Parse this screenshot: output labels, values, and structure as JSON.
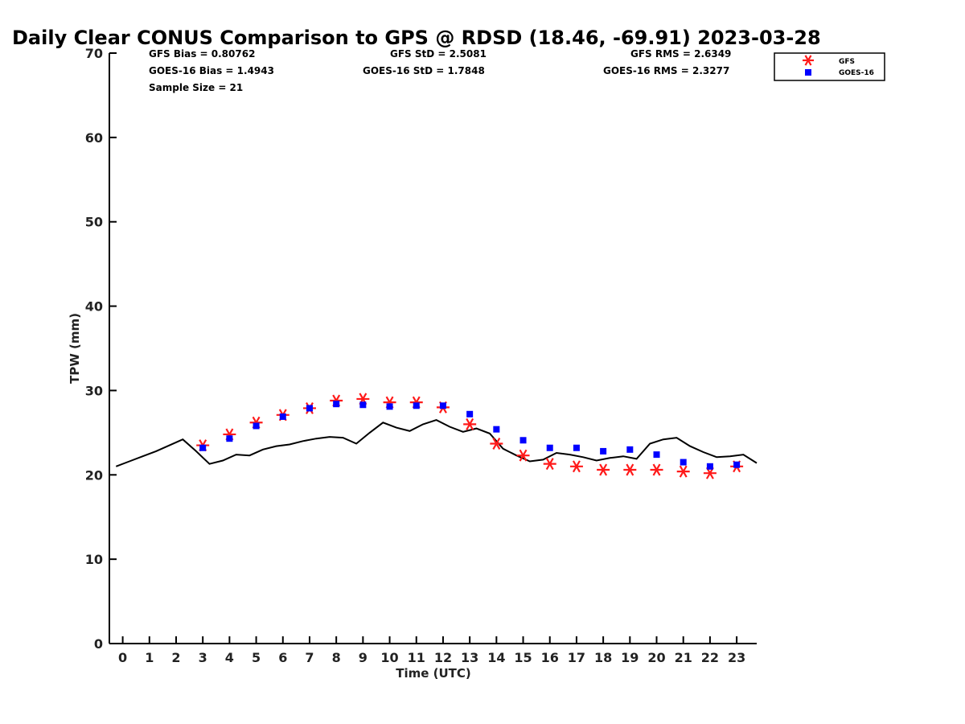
{
  "chart_data": {
    "type": "line",
    "title": "Daily Clear CONUS Comparison to GPS @ RDSD (18.46, -69.91) 2023-03-28",
    "xlabel": "Time (UTC)",
    "ylabel": "TPW (mm)",
    "xlim": [
      -0.5,
      23.75
    ],
    "ylim": [
      0,
      70
    ],
    "xticks": [
      0,
      1,
      2,
      3,
      4,
      5,
      6,
      7,
      8,
      9,
      10,
      11,
      12,
      13,
      14,
      15,
      16,
      17,
      18,
      19,
      20,
      21,
      22,
      23
    ],
    "yticks": [
      0,
      10,
      20,
      30,
      40,
      50,
      60,
      70
    ],
    "grid": false,
    "legend_position": "top-right",
    "stats": [
      {
        "text": "GFS Bias = 0.80762"
      },
      {
        "text": "GOES-16 Bias = 1.4943"
      },
      {
        "text": "Sample Size = 21"
      },
      {
        "text": "GFS StD = 2.5081"
      },
      {
        "text": "GOES-16 StD = 1.7848"
      },
      {
        "text": "GFS RMS = 2.6349"
      },
      {
        "text": "GOES-16 RMS = 2.3277"
      }
    ],
    "series": [
      {
        "type": "line",
        "color": "#000000",
        "x": [
          -0.25,
          0.25,
          0.75,
          1.25,
          1.75,
          2.25,
          2.75,
          3.25,
          3.75,
          4.25,
          4.75,
          5.25,
          5.75,
          6.25,
          6.75,
          7.25,
          7.75,
          8.25,
          8.75,
          9.25,
          9.75,
          10.25,
          10.75,
          11.25,
          11.75,
          12.25,
          12.75,
          13.25,
          13.75,
          14.25,
          14.75,
          15.25,
          15.75,
          16.25,
          16.75,
          17.25,
          17.75,
          18.25,
          18.75,
          19.25,
          19.75,
          20.25,
          20.75,
          21.25,
          21.75,
          22.25,
          22.75,
          23.25,
          23.75
        ],
        "y": [
          21.0,
          21.6,
          22.2,
          22.8,
          23.5,
          24.2,
          22.8,
          21.3,
          21.7,
          22.4,
          22.3,
          23.0,
          23.4,
          23.6,
          24.0,
          24.3,
          24.5,
          24.4,
          23.7,
          25.0,
          26.2,
          25.6,
          25.2,
          26.0,
          26.5,
          25.7,
          25.1,
          25.5,
          24.9,
          23.1,
          22.3,
          21.6,
          21.8,
          22.6,
          22.4,
          22.1,
          21.7,
          22.0,
          22.2,
          21.9,
          23.7,
          24.2,
          24.4,
          23.4,
          22.7,
          22.1,
          22.2,
          22.4,
          21.4
        ]
      },
      {
        "name": "GFS",
        "type": "scatter",
        "marker": "asterisk",
        "color": "#ff1a1a",
        "x": [
          3,
          4,
          5,
          6,
          7,
          8,
          9,
          10,
          11,
          12,
          13,
          14,
          15,
          16,
          17,
          18,
          19,
          20,
          21,
          22,
          23
        ],
        "y": [
          23.5,
          24.8,
          26.2,
          27.1,
          27.9,
          28.8,
          29.0,
          28.6,
          28.6,
          28.0,
          26.0,
          23.7,
          22.3,
          21.3,
          21.0,
          20.6,
          20.6,
          20.6,
          20.4,
          20.2,
          21.0
        ]
      },
      {
        "name": "GOES-16",
        "type": "scatter",
        "marker": "square",
        "color": "#0000ff",
        "x": [
          3,
          4,
          5,
          6,
          7,
          8,
          9,
          10,
          11,
          12,
          13,
          14,
          15,
          16,
          17,
          18,
          19,
          20,
          21,
          22,
          23
        ],
        "y": [
          23.2,
          24.3,
          25.8,
          26.9,
          27.9,
          28.4,
          28.3,
          28.1,
          28.2,
          28.2,
          27.2,
          25.4,
          24.1,
          23.2,
          23.2,
          22.8,
          23.0,
          22.4,
          21.5,
          21.0,
          21.2
        ]
      }
    ]
  }
}
